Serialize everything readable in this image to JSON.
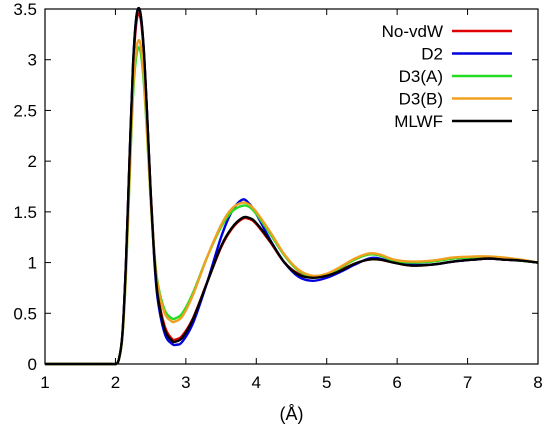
{
  "chart_data": {
    "type": "line",
    "title": "",
    "xlabel": "(Å)",
    "ylabel": "",
    "xlim": [
      1,
      8
    ],
    "ylim": [
      0,
      3.5
    ],
    "xticks": [
      "1",
      "2",
      "3",
      "4",
      "5",
      "6",
      "7",
      "8"
    ],
    "yticks": [
      "0",
      "0.5",
      "1",
      "1.5",
      "2",
      "2.5",
      "3",
      "3.5"
    ],
    "legend_position": "top-right",
    "grid": false,
    "series": [
      {
        "name": "No-vdW",
        "color": "#e00000",
        "points": [
          [
            1.0,
            0
          ],
          [
            1.9,
            0
          ],
          [
            2.0,
            0.002
          ],
          [
            2.05,
            0.05
          ],
          [
            2.1,
            0.3
          ],
          [
            2.15,
            1.0
          ],
          [
            2.2,
            2.0
          ],
          [
            2.25,
            2.9
          ],
          [
            2.3,
            3.38
          ],
          [
            2.35,
            3.43
          ],
          [
            2.4,
            3.1
          ],
          [
            2.45,
            2.45
          ],
          [
            2.5,
            1.7
          ],
          [
            2.55,
            1.1
          ],
          [
            2.6,
            0.7
          ],
          [
            2.7,
            0.37
          ],
          [
            2.8,
            0.25
          ],
          [
            2.85,
            0.24
          ],
          [
            2.95,
            0.28
          ],
          [
            3.1,
            0.45
          ],
          [
            3.3,
            0.8
          ],
          [
            3.5,
            1.15
          ],
          [
            3.65,
            1.33
          ],
          [
            3.8,
            1.43
          ],
          [
            3.9,
            1.43
          ],
          [
            4.0,
            1.38
          ],
          [
            4.2,
            1.2
          ],
          [
            4.4,
            1.0
          ],
          [
            4.6,
            0.89
          ],
          [
            4.8,
            0.86
          ],
          [
            5.0,
            0.88
          ],
          [
            5.2,
            0.93
          ],
          [
            5.4,
            0.99
          ],
          [
            5.6,
            1.03
          ],
          [
            5.75,
            1.03
          ],
          [
            5.95,
            1.0
          ],
          [
            6.2,
            0.97
          ],
          [
            6.5,
            0.98
          ],
          [
            6.8,
            1.01
          ],
          [
            7.1,
            1.03
          ],
          [
            7.3,
            1.04
          ],
          [
            7.5,
            1.03
          ],
          [
            7.75,
            1.02
          ],
          [
            8.0,
            1.0
          ]
        ]
      },
      {
        "name": "D2",
        "color": "#0000dd",
        "points": [
          [
            1.0,
            0
          ],
          [
            1.9,
            0
          ],
          [
            2.0,
            0.002
          ],
          [
            2.05,
            0.05
          ],
          [
            2.1,
            0.3
          ],
          [
            2.15,
            1.0
          ],
          [
            2.2,
            2.0
          ],
          [
            2.25,
            2.95
          ],
          [
            2.3,
            3.44
          ],
          [
            2.35,
            3.47
          ],
          [
            2.4,
            3.12
          ],
          [
            2.45,
            2.45
          ],
          [
            2.5,
            1.68
          ],
          [
            2.55,
            1.05
          ],
          [
            2.6,
            0.64
          ],
          [
            2.7,
            0.3
          ],
          [
            2.8,
            0.2
          ],
          [
            2.87,
            0.19
          ],
          [
            2.95,
            0.22
          ],
          [
            3.1,
            0.4
          ],
          [
            3.3,
            0.8
          ],
          [
            3.5,
            1.25
          ],
          [
            3.65,
            1.5
          ],
          [
            3.8,
            1.62
          ],
          [
            3.9,
            1.58
          ],
          [
            4.0,
            1.48
          ],
          [
            4.2,
            1.22
          ],
          [
            4.4,
            1.0
          ],
          [
            4.6,
            0.86
          ],
          [
            4.8,
            0.82
          ],
          [
            5.0,
            0.85
          ],
          [
            5.2,
            0.91
          ],
          [
            5.4,
            0.98
          ],
          [
            5.6,
            1.04
          ],
          [
            5.75,
            1.04
          ],
          [
            5.95,
            1.0
          ],
          [
            6.2,
            0.98
          ],
          [
            6.5,
            0.98
          ],
          [
            6.8,
            1.01
          ],
          [
            7.1,
            1.03
          ],
          [
            7.3,
            1.04
          ],
          [
            7.5,
            1.03
          ],
          [
            7.75,
            1.02
          ],
          [
            8.0,
            1.0
          ]
        ]
      },
      {
        "name": "D3(A)",
        "color": "#22dd22",
        "points": [
          [
            1.0,
            0
          ],
          [
            1.9,
            0
          ],
          [
            2.0,
            0.002
          ],
          [
            2.05,
            0.05
          ],
          [
            2.1,
            0.28
          ],
          [
            2.15,
            0.9
          ],
          [
            2.2,
            1.8
          ],
          [
            2.25,
            2.65
          ],
          [
            2.3,
            3.05
          ],
          [
            2.35,
            3.1
          ],
          [
            2.4,
            2.8
          ],
          [
            2.45,
            2.25
          ],
          [
            2.5,
            1.62
          ],
          [
            2.55,
            1.12
          ],
          [
            2.6,
            0.8
          ],
          [
            2.7,
            0.53
          ],
          [
            2.8,
            0.45
          ],
          [
            2.85,
            0.45
          ],
          [
            2.95,
            0.5
          ],
          [
            3.1,
            0.7
          ],
          [
            3.3,
            1.05
          ],
          [
            3.5,
            1.35
          ],
          [
            3.65,
            1.5
          ],
          [
            3.8,
            1.56
          ],
          [
            3.9,
            1.55
          ],
          [
            4.0,
            1.48
          ],
          [
            4.2,
            1.28
          ],
          [
            4.4,
            1.07
          ],
          [
            4.6,
            0.92
          ],
          [
            4.8,
            0.86
          ],
          [
            5.0,
            0.88
          ],
          [
            5.2,
            0.95
          ],
          [
            5.4,
            1.03
          ],
          [
            5.6,
            1.08
          ],
          [
            5.75,
            1.07
          ],
          [
            5.95,
            1.02
          ],
          [
            6.2,
            1.0
          ],
          [
            6.5,
            1.01
          ],
          [
            6.8,
            1.04
          ],
          [
            7.1,
            1.05
          ],
          [
            7.3,
            1.05
          ],
          [
            7.5,
            1.04
          ],
          [
            7.75,
            1.02
          ],
          [
            8.0,
            1.0
          ]
        ]
      },
      {
        "name": "D3(B)",
        "color": "#f0a020",
        "points": [
          [
            1.0,
            0
          ],
          [
            1.9,
            0
          ],
          [
            2.0,
            0.002
          ],
          [
            2.05,
            0.05
          ],
          [
            2.1,
            0.28
          ],
          [
            2.15,
            0.92
          ],
          [
            2.2,
            1.85
          ],
          [
            2.25,
            2.72
          ],
          [
            2.3,
            3.12
          ],
          [
            2.35,
            3.17
          ],
          [
            2.4,
            2.86
          ],
          [
            2.45,
            2.28
          ],
          [
            2.5,
            1.63
          ],
          [
            2.55,
            1.1
          ],
          [
            2.6,
            0.78
          ],
          [
            2.7,
            0.5
          ],
          [
            2.8,
            0.42
          ],
          [
            2.85,
            0.42
          ],
          [
            2.95,
            0.47
          ],
          [
            3.1,
            0.68
          ],
          [
            3.3,
            1.05
          ],
          [
            3.5,
            1.37
          ],
          [
            3.65,
            1.53
          ],
          [
            3.8,
            1.59
          ],
          [
            3.9,
            1.57
          ],
          [
            4.0,
            1.5
          ],
          [
            4.2,
            1.3
          ],
          [
            4.4,
            1.08
          ],
          [
            4.6,
            0.93
          ],
          [
            4.8,
            0.87
          ],
          [
            5.0,
            0.89
          ],
          [
            5.2,
            0.96
          ],
          [
            5.4,
            1.04
          ],
          [
            5.6,
            1.09
          ],
          [
            5.75,
            1.08
          ],
          [
            5.95,
            1.03
          ],
          [
            6.2,
            1.01
          ],
          [
            6.5,
            1.02
          ],
          [
            6.8,
            1.05
          ],
          [
            7.1,
            1.06
          ],
          [
            7.3,
            1.06
          ],
          [
            7.5,
            1.05
          ],
          [
            7.75,
            1.03
          ],
          [
            8.0,
            1.0
          ]
        ]
      },
      {
        "name": "MLWF",
        "color": "#000000",
        "points": [
          [
            1.0,
            0
          ],
          [
            1.9,
            0
          ],
          [
            2.0,
            0.002
          ],
          [
            2.05,
            0.05
          ],
          [
            2.1,
            0.3
          ],
          [
            2.15,
            1.0
          ],
          [
            2.2,
            2.02
          ],
          [
            2.25,
            2.95
          ],
          [
            2.3,
            3.43
          ],
          [
            2.35,
            3.48
          ],
          [
            2.4,
            3.13
          ],
          [
            2.45,
            2.46
          ],
          [
            2.5,
            1.7
          ],
          [
            2.55,
            1.08
          ],
          [
            2.6,
            0.68
          ],
          [
            2.7,
            0.34
          ],
          [
            2.8,
            0.23
          ],
          [
            2.85,
            0.22
          ],
          [
            2.95,
            0.26
          ],
          [
            3.1,
            0.44
          ],
          [
            3.3,
            0.8
          ],
          [
            3.5,
            1.16
          ],
          [
            3.65,
            1.34
          ],
          [
            3.8,
            1.44
          ],
          [
            3.9,
            1.44
          ],
          [
            4.0,
            1.39
          ],
          [
            4.2,
            1.21
          ],
          [
            4.4,
            1.0
          ],
          [
            4.6,
            0.88
          ],
          [
            4.8,
            0.85
          ],
          [
            5.0,
            0.87
          ],
          [
            5.2,
            0.92
          ],
          [
            5.4,
            0.99
          ],
          [
            5.6,
            1.03
          ],
          [
            5.75,
            1.03
          ],
          [
            5.95,
            1.0
          ],
          [
            6.2,
            0.97
          ],
          [
            6.5,
            0.98
          ],
          [
            6.8,
            1.01
          ],
          [
            7.1,
            1.03
          ],
          [
            7.3,
            1.04
          ],
          [
            7.5,
            1.03
          ],
          [
            7.75,
            1.02
          ],
          [
            8.0,
            1.0
          ]
        ]
      }
    ]
  }
}
